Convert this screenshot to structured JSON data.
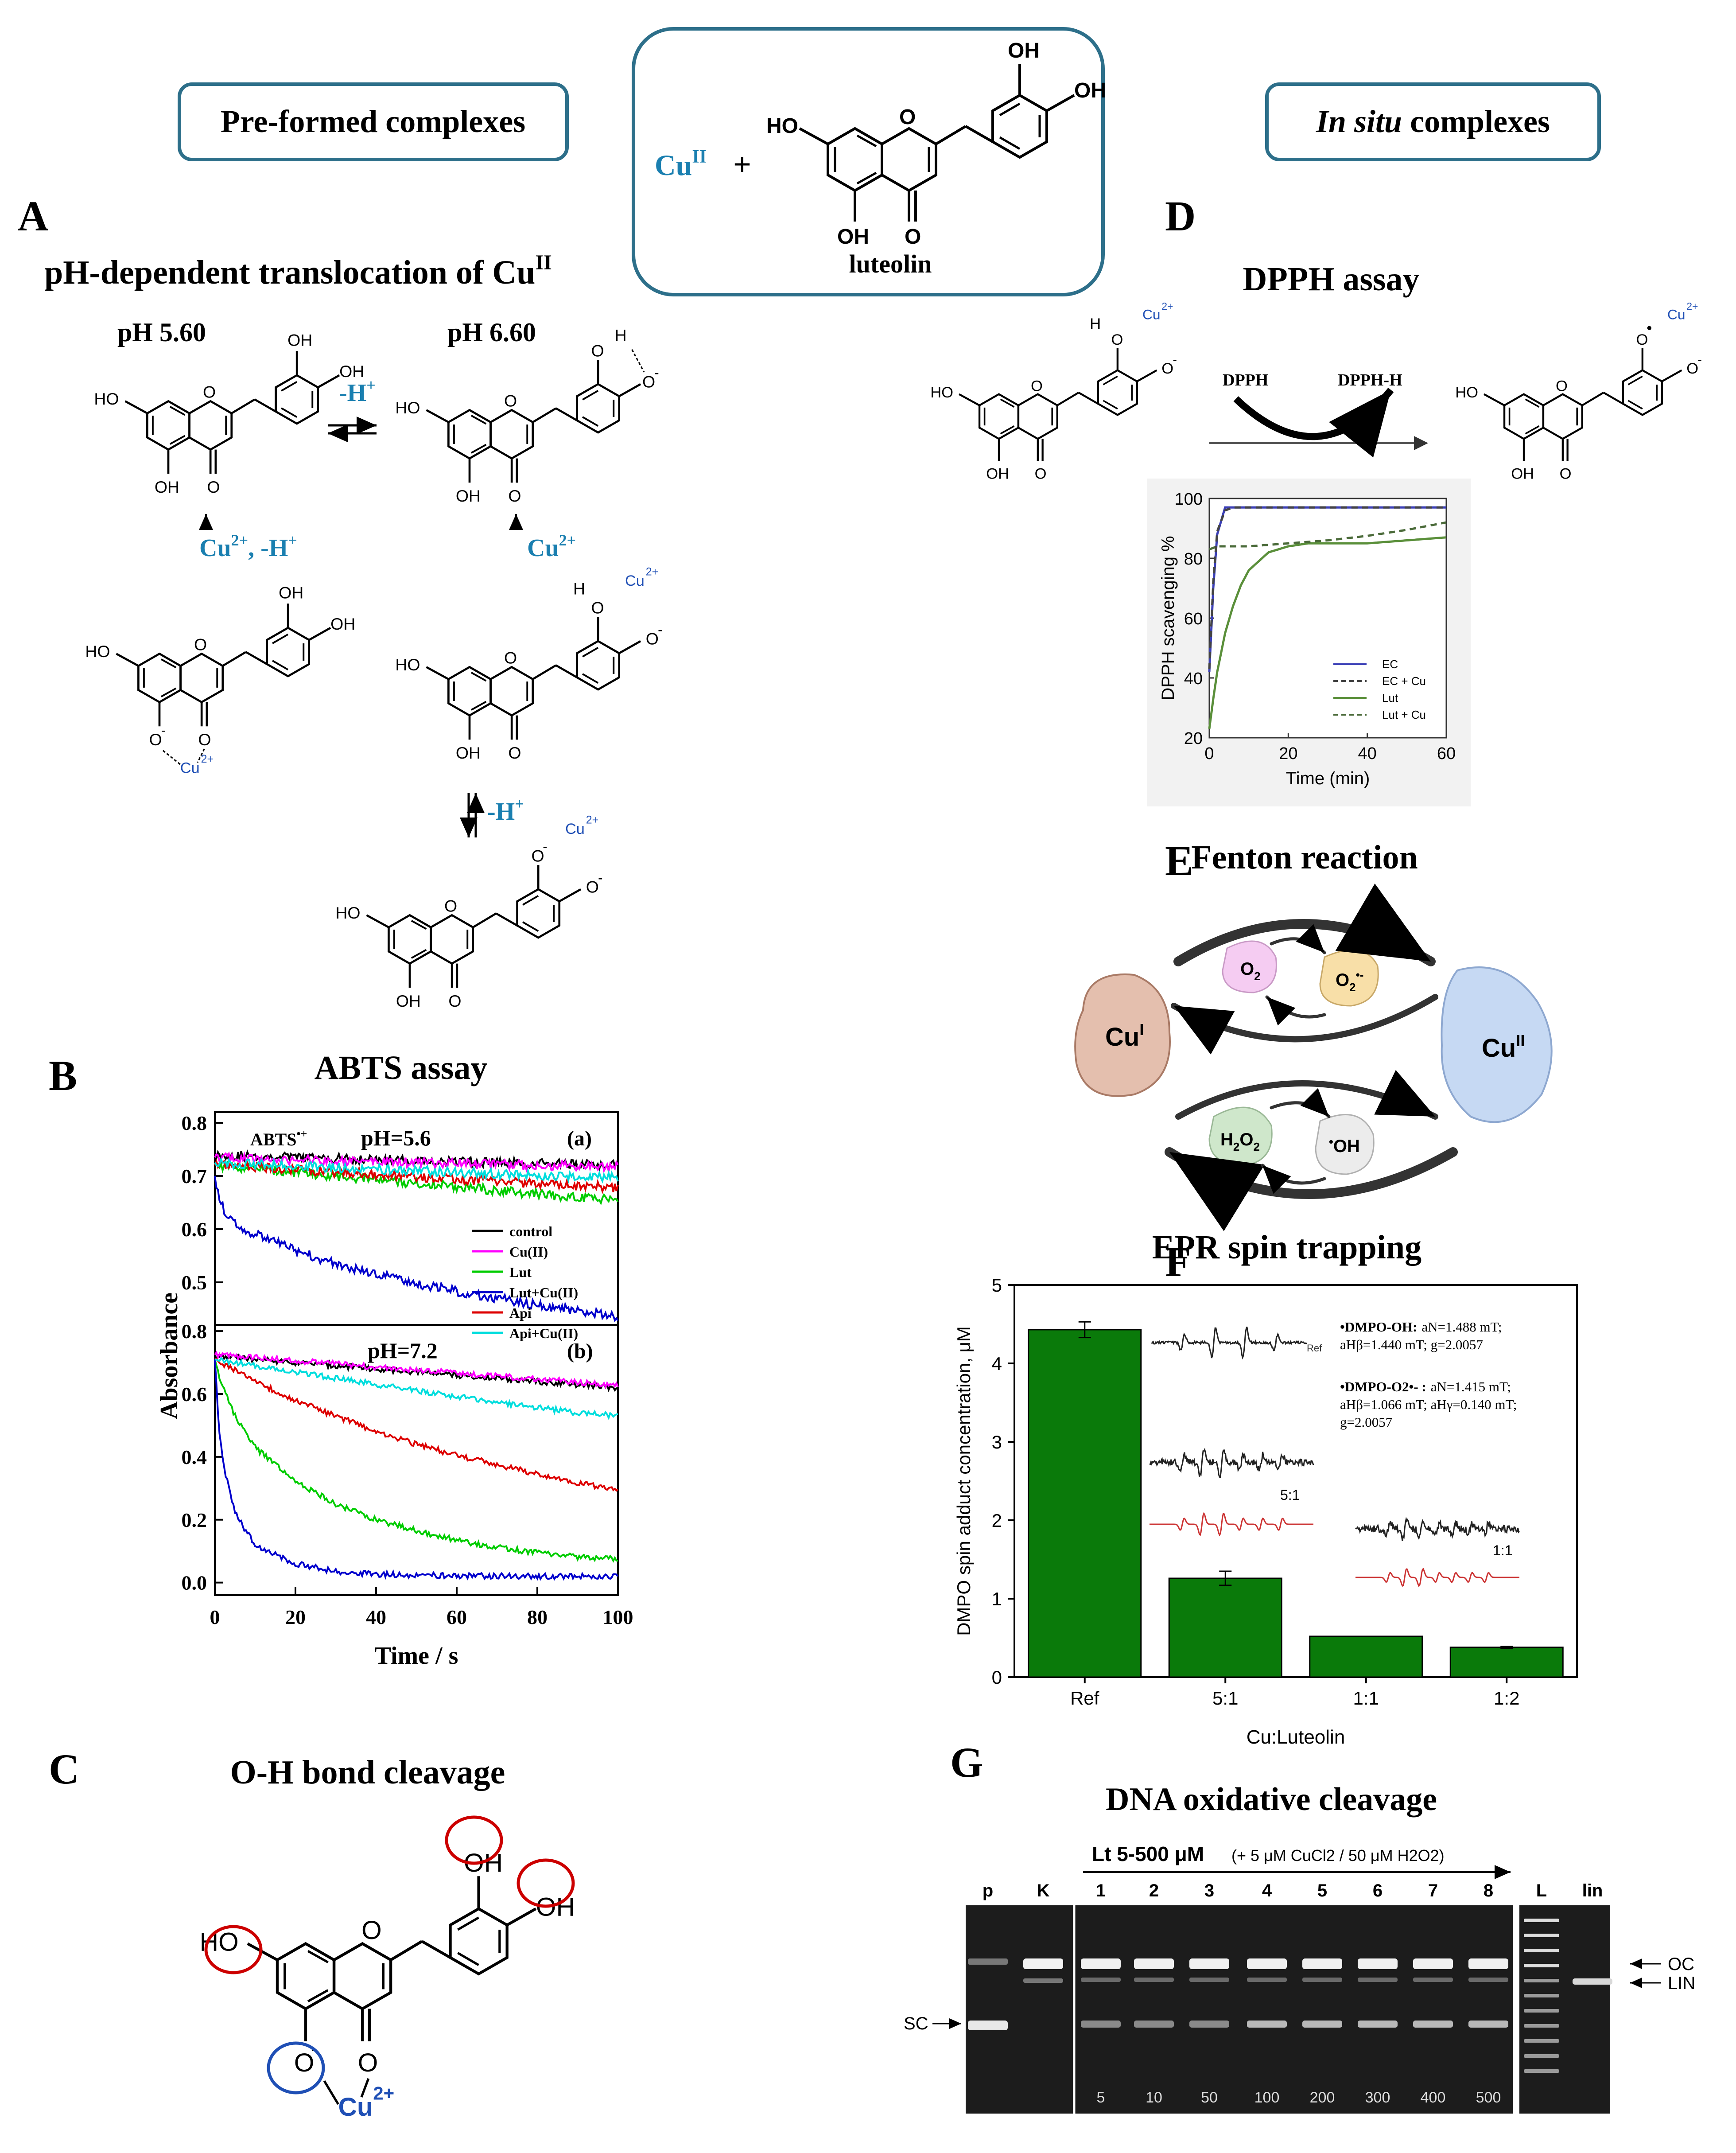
{
  "header": {
    "preformed_label": "Pre-formed complexes",
    "insitu_label_italic": "In situ",
    "insitu_label_rest": " complexes",
    "center_reagent": "Cu",
    "center_reagent_sup": "II",
    "center_plus": "+",
    "center_name": "luteolin"
  },
  "panel_a": {
    "letter": "A",
    "title": "pH-dependent translocation of Cu",
    "title_sup": "II",
    "ph_left": "pH 5.60",
    "ph_right": "pH 6.60",
    "arrow_label": "-H",
    "arrow_label_sup": "+",
    "cond_left": "Cu",
    "cond_left_sup": "2+",
    "cond_left_rest": ", -H",
    "cond_left_rest_sup": "+",
    "cond_right": "Cu",
    "cond_right_sup": "2+",
    "deprot_label": "-H",
    "deprot_label_sup": "+"
  },
  "panel_b": {
    "letter": "B",
    "title": "ABTS assay",
    "ylabel": "Absorbance",
    "xlabel": "Time / s",
    "top_tag": "(a)",
    "top_ph": "pH=5.6",
    "top_species": "ABTS",
    "top_species_sup": "•+",
    "bottom_tag": "(b)",
    "bottom_ph": "pH=7.2",
    "legend": [
      "control",
      "Cu(II)",
      "Lut",
      "Lut+Cu(II)",
      "Api",
      "Api+Cu(II)"
    ],
    "colors": [
      "#000000",
      "#ff00ff",
      "#00cc00",
      "#0000cc",
      "#dd0000",
      "#00dddd"
    ]
  },
  "panel_c": {
    "letter": "C",
    "title": "O-H bond cleavage",
    "circle_color": "#cc0000",
    "cu_color": "#1f4fb5"
  },
  "panel_d": {
    "letter": "D",
    "title": "DPPH assay",
    "reagent": "DPPH",
    "product": "DPPH-H",
    "ylabel": "DPPH scavenging %",
    "xlabel": "Time (min)",
    "legend": [
      "EC",
      "EC + Cu",
      "Lut",
      "Lut + Cu"
    ]
  },
  "panel_e": {
    "letter": "E",
    "title": "Fenton reaction",
    "cu1": "Cu",
    "cu1_sup": "I",
    "cu2": "Cu",
    "cu2_sup": "II",
    "o2": "O",
    "o2_sub": "2",
    "o2rad": "O",
    "o2rad_sub": "2",
    "o2rad_sup": "•-",
    "h2o2_a": "H",
    "h2o2_sub1": "2",
    "h2o2_b": "O",
    "h2o2_sub2": "2",
    "oh_dot": "•",
    "oh": "OH"
  },
  "panel_f": {
    "letter": "F",
    "title": "EPR spin trapping",
    "ylabel": "DMPO spin adduct concentration, μM",
    "xlabel": "Cu:Luteolin",
    "ref_tag": "Ref",
    "ratio_51": "5:1",
    "ratio_11": "1:1",
    "oh_line1_name": "•DMPO-OH:",
    "oh_line1_vals": "aN=1.488 mT;",
    "oh_line2": "aHβ=1.440 mT; g=2.0057",
    "o2_line1_name": "•DMPO-O2•- :",
    "o2_line1_vals": "aN=1.415 mT;",
    "o2_line2": "aHβ=1.066 mT; aHγ=0.140 mT;",
    "o2_line3": "g=2.0057",
    "bar_color": "#0a7a0a"
  },
  "panel_g": {
    "letter": "G",
    "title": "DNA oxidative cleavage",
    "range_label": "Lt 5-500 μM",
    "cond_label": "(+ 5 μM CuCl2 / 50 μM H2O2)",
    "lanes": [
      "p",
      "K",
      "1",
      "2",
      "3",
      "4",
      "5",
      "6",
      "7",
      "8",
      "L",
      "lin"
    ],
    "conc": [
      "5",
      "10",
      "50",
      "100",
      "200",
      "300",
      "400",
      "500"
    ],
    "sc": "SC",
    "oc": "OC",
    "lin_band": "LIN"
  },
  "chart_data": [
    {
      "type": "line",
      "title": "ABTS assay (a) pH=5.6",
      "xlabel": "Time / s",
      "ylabel": "Absorbance",
      "xlim": [
        0,
        100
      ],
      "ylim": [
        0.42,
        0.82
      ],
      "x": [
        0,
        1,
        2,
        5,
        10,
        20,
        30,
        40,
        50,
        60,
        70,
        80,
        90,
        100
      ],
      "series": [
        {
          "name": "control",
          "values": [
            0.74,
            0.739,
            0.739,
            0.738,
            0.737,
            0.735,
            0.733,
            0.731,
            0.729,
            0.727,
            0.725,
            0.723,
            0.722,
            0.72
          ]
        },
        {
          "name": "Cu(II)",
          "values": [
            0.735,
            0.735,
            0.734,
            0.733,
            0.732,
            0.73,
            0.728,
            0.727,
            0.725,
            0.723,
            0.722,
            0.72,
            0.718,
            0.717
          ]
        },
        {
          "name": "Lut",
          "values": [
            0.72,
            0.72,
            0.719,
            0.717,
            0.714,
            0.707,
            0.7,
            0.693,
            0.686,
            0.68,
            0.673,
            0.666,
            0.66,
            0.655
          ]
        },
        {
          "name": "Lut+Cu(II)",
          "values": [
            0.7,
            0.66,
            0.64,
            0.61,
            0.59,
            0.56,
            0.535,
            0.515,
            0.498,
            0.483,
            0.47,
            0.458,
            0.446,
            0.437
          ]
        },
        {
          "name": "Api",
          "values": [
            0.72,
            0.72,
            0.719,
            0.718,
            0.716,
            0.712,
            0.707,
            0.703,
            0.699,
            0.694,
            0.69,
            0.686,
            0.682,
            0.678
          ]
        },
        {
          "name": "Api+Cu(II)",
          "values": [
            0.725,
            0.725,
            0.724,
            0.723,
            0.722,
            0.719,
            0.716,
            0.713,
            0.71,
            0.707,
            0.704,
            0.701,
            0.699,
            0.697
          ]
        }
      ]
    },
    {
      "type": "line",
      "title": "ABTS assay (b) pH=7.2",
      "xlabel": "Time / s",
      "ylabel": "Absorbance",
      "xlim": [
        0,
        100
      ],
      "ylim": [
        -0.04,
        0.82
      ],
      "x": [
        0,
        1,
        2,
        5,
        10,
        20,
        30,
        40,
        50,
        60,
        70,
        80,
        90,
        100
      ],
      "series": [
        {
          "name": "control",
          "values": [
            0.72,
            0.719,
            0.719,
            0.716,
            0.71,
            0.7,
            0.69,
            0.68,
            0.67,
            0.66,
            0.65,
            0.64,
            0.63,
            0.62
          ]
        },
        {
          "name": "Cu(II)",
          "values": [
            0.725,
            0.724,
            0.724,
            0.721,
            0.716,
            0.706,
            0.696,
            0.686,
            0.676,
            0.667,
            0.657,
            0.648,
            0.638,
            0.628
          ]
        },
        {
          "name": "Lut",
          "values": [
            0.71,
            0.66,
            0.62,
            0.53,
            0.43,
            0.32,
            0.25,
            0.2,
            0.165,
            0.135,
            0.112,
            0.095,
            0.082,
            0.075
          ]
        },
        {
          "name": "Lut+Cu(II)",
          "values": [
            0.71,
            0.5,
            0.38,
            0.22,
            0.12,
            0.06,
            0.035,
            0.027,
            0.024,
            0.022,
            0.021,
            0.02,
            0.02,
            0.02
          ]
        },
        {
          "name": "Api",
          "values": [
            0.71,
            0.702,
            0.695,
            0.675,
            0.64,
            0.58,
            0.53,
            0.48,
            0.44,
            0.405,
            0.375,
            0.345,
            0.318,
            0.295
          ]
        },
        {
          "name": "Api+Cu(II)",
          "values": [
            0.71,
            0.708,
            0.706,
            0.7,
            0.69,
            0.67,
            0.65,
            0.63,
            0.61,
            0.592,
            0.574,
            0.557,
            0.54,
            0.53
          ]
        }
      ]
    },
    {
      "type": "line",
      "title": "DPPH assay",
      "xlabel": "Time (min)",
      "ylabel": "DPPH scavenging %",
      "xlim": [
        0,
        60
      ],
      "ylim": [
        20,
        100
      ],
      "x": [
        0,
        1,
        2,
        4,
        6,
        8,
        10,
        15,
        20,
        25,
        30,
        40,
        50,
        60
      ],
      "series": [
        {
          "name": "EC",
          "values": [
            42,
            70,
            88,
            97,
            97,
            97,
            97,
            97,
            97,
            97,
            97,
            97,
            97,
            97
          ]
        },
        {
          "name": "EC + Cu",
          "values": [
            43,
            72,
            89,
            96,
            97,
            97,
            97,
            97,
            97,
            97,
            97,
            97,
            97,
            97
          ]
        },
        {
          "name": "Lut",
          "values": [
            23,
            33,
            42,
            55,
            64,
            71,
            76,
            82,
            84,
            85,
            85,
            85,
            86,
            87
          ]
        },
        {
          "name": "Lut + Cu",
          "values": [
            83,
            83.5,
            84,
            84,
            84,
            84,
            84,
            84.5,
            85,
            85.5,
            86,
            87.5,
            89.5,
            92
          ]
        }
      ]
    },
    {
      "type": "bar",
      "title": "EPR spin trapping",
      "xlabel": "Cu:Luteolin",
      "ylabel": "DMPO spin adduct concentration, μM",
      "categories": [
        "Ref",
        "5:1",
        "1:1",
        "1:2"
      ],
      "values": [
        4.43,
        1.26,
        0.52,
        0.38
      ],
      "errors": [
        0.1,
        0.09,
        0.0,
        0.01
      ],
      "ylim": [
        0,
        5
      ],
      "yticks": [
        0,
        1,
        2,
        3,
        4,
        5
      ]
    }
  ]
}
